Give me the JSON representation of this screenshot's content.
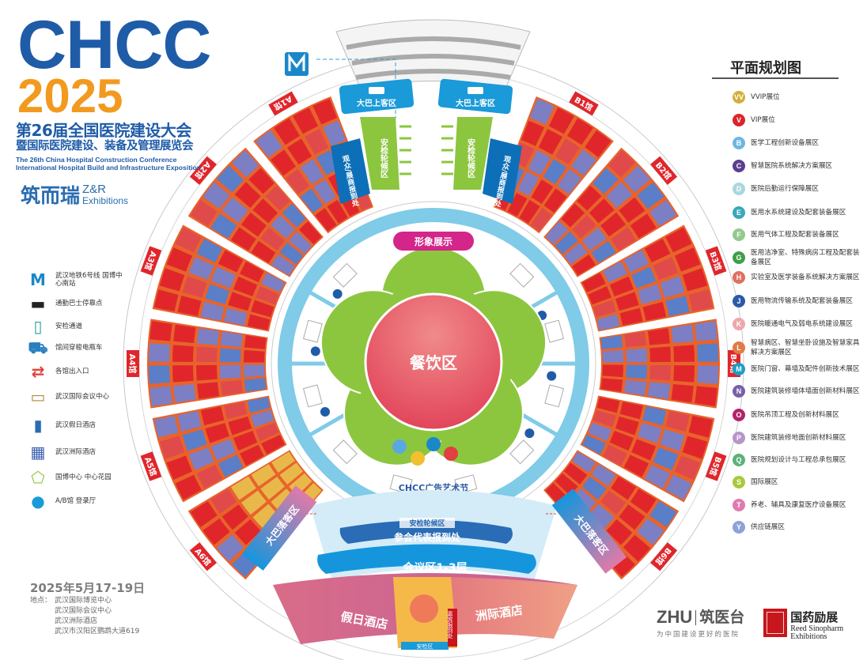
{
  "header": {
    "brand": "CHCC",
    "year": "2025",
    "title_cn_1": "第26届全国医院建设大会",
    "title_cn_2": "暨国际医院建设、装备及管理展览会",
    "title_en_1": "The 26th China Hospital Construction Conference",
    "title_en_2": "International Hospital Build and Infrastructure Exposition"
  },
  "organizer": {
    "cn": "筑而瑞",
    "en_1": "Z&R",
    "en_2": "Exhibitions"
  },
  "left_legend": [
    {
      "icon": "metro-icon",
      "label": "武汉地铁6号线 国博中心南站"
    },
    {
      "icon": "bus-icon",
      "label": "通勤巴士停靠点"
    },
    {
      "icon": "security-gate-icon",
      "label": "安检通道"
    },
    {
      "icon": "shuttle-cart-icon",
      "label": "馆间穿梭电瓶车"
    },
    {
      "icon": "entrance-icon",
      "label": "各馆出入口"
    },
    {
      "icon": "conference-center-icon",
      "label": "武汉国际会议中心"
    },
    {
      "icon": "holiday-inn-icon",
      "label": "武汉假日酒店"
    },
    {
      "icon": "intercontinental-icon",
      "label": "武汉洲际酒店"
    },
    {
      "icon": "garden-icon",
      "label": "国博中心 中心花园"
    },
    {
      "icon": "lobby-icon",
      "label": "A/B馆 登录厅"
    }
  ],
  "event": {
    "date": "2025年5月17-19日",
    "venue_label": "地点：",
    "venues": [
      "武汉国际博览中心",
      "武汉国际会议中心",
      "武汉洲际酒店",
      "武汉市汉阳区鹦鹉大道619"
    ]
  },
  "map": {
    "bus_pickup": "大巴上客区",
    "security_queue": "安检轮候区",
    "registration": "观众/展商报到处",
    "image_display": "形象展示",
    "dining": "餐饮区",
    "ad_festival": "CHCC广告艺术节",
    "delegate_registration": "参会代表报到处",
    "conference": "会议区1-3层",
    "holiday_inn": "假日酒店",
    "intercontinental": "洲际酒店",
    "vip_registration": "嘉宾报到处",
    "security_area": "安检区",
    "bus_dropoff": "大巴落客区",
    "halls_a": [
      "A1馆",
      "A2馆",
      "A3馆",
      "A4馆",
      "A5馆",
      "A6馆"
    ],
    "halls_b": [
      "B1馆",
      "B2馆",
      "B3馆",
      "B4馆",
      "B5馆",
      "B6馆"
    ],
    "colors": {
      "ring": "#7fcbe8",
      "garden": "#8cc63f",
      "hall_red": "#e0262b",
      "aisle": "#e8632b",
      "booth_purple": "#7c7fc4",
      "booth_gold": "#e8b94a",
      "conference": "#1596dc",
      "registration_blue": "#2a6cb5"
    }
  },
  "right_legend": {
    "title": "平面规划图",
    "items": [
      {
        "code": "VV",
        "label": "VVIP展位",
        "color": "#d4ae3c"
      },
      {
        "code": "V",
        "label": "VIP展位",
        "color": "#d9262b"
      },
      {
        "code": "B",
        "label": "医学工程创新设备展区",
        "color": "#6db7e2"
      },
      {
        "code": "C",
        "label": "智慧医院系统解决方案展区",
        "color": "#5b3e8f"
      },
      {
        "code": "D",
        "label": "医院后勤运行保障展区",
        "color": "#a9d7df"
      },
      {
        "code": "E",
        "label": "医用水系统建设及配套装备展区",
        "color": "#3aa8b9"
      },
      {
        "code": "F",
        "label": "医用气体工程及配套装备展区",
        "color": "#93c98e"
      },
      {
        "code": "G",
        "label": "医用洁净室、特殊病房工程及配套装备展区",
        "color": "#3f9f48"
      },
      {
        "code": "H",
        "label": "实验室及医学装备系统解决方案展区",
        "color": "#e0705e"
      },
      {
        "code": "J",
        "label": "医用物流传输系统及配套装备展区",
        "color": "#2c5aa6"
      },
      {
        "code": "K",
        "label": "医院暖通电气及弱电系统建设展区",
        "color": "#eda7ac"
      },
      {
        "code": "L",
        "label": "智慧病区、智慧坐卧设施及智慧家具解决方案展区",
        "color": "#e07b45"
      },
      {
        "code": "M",
        "label": "医院门窗、幕墙及配件创新技术展区",
        "color": "#1b9fc8"
      },
      {
        "code": "N",
        "label": "医院建筑装修墙体墙面创新材料展区",
        "color": "#7a60a8"
      },
      {
        "code": "O",
        "label": "医院吊顶工程及创新材料展区",
        "color": "#b3236b"
      },
      {
        "code": "P",
        "label": "医院建筑装修地面创新材料展区",
        "color": "#b795c9"
      },
      {
        "code": "Q",
        "label": "医院规划设计与工程总承包展区",
        "color": "#5bb27a"
      },
      {
        "code": "S",
        "label": "国际展区",
        "color": "#a8c93b"
      },
      {
        "code": "T",
        "label": "养老、辅具及康复医疗设备展区",
        "color": "#e07ab0"
      },
      {
        "code": "Y",
        "label": "供应链展区",
        "color": "#8fa2d8"
      }
    ]
  },
  "sponsors": {
    "zhu_logo": "ZHU",
    "zhu_cn": "筑医台",
    "zhu_slogan": "为中国建设更好的医院",
    "reed_cn": "国药励展",
    "reed_en_1": "Reed Sinopharm",
    "reed_en_2": "Exhibitions"
  }
}
